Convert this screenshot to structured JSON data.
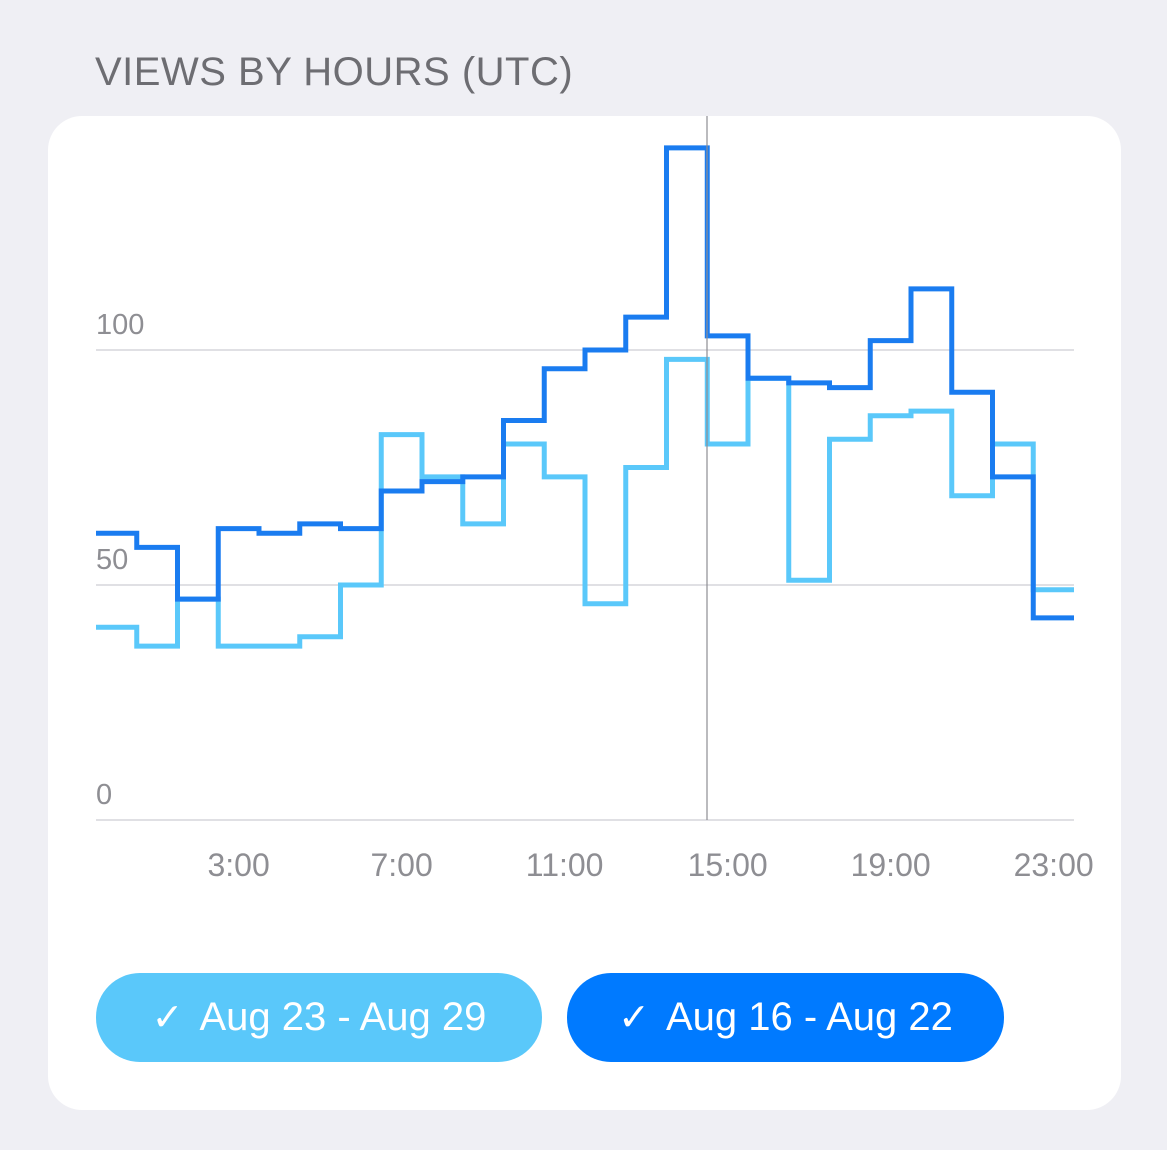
{
  "header": {
    "title": "VIEWS BY HOURS (UTC)"
  },
  "legend": [
    {
      "label": "Aug 23 - Aug 29",
      "check": "✓",
      "color": "#5ac8fa"
    },
    {
      "label": "Aug 16 - Aug 22",
      "check": "✓",
      "color": "#007aff"
    }
  ],
  "colors": {
    "background": "#efeff4",
    "card": "#ffffff",
    "grid": "#d6d6db",
    "axis_text": "#8e8e93",
    "cursor": "#8e8e93"
  },
  "chart_data": {
    "type": "line",
    "step": true,
    "title": "VIEWS BY HOURS (UTC)",
    "x": [
      0,
      1,
      2,
      3,
      4,
      5,
      6,
      7,
      8,
      9,
      10,
      11,
      12,
      13,
      14,
      15,
      16,
      17,
      18,
      19,
      20,
      21,
      22,
      23
    ],
    "xtick_values": [
      3,
      7,
      11,
      15,
      19,
      23
    ],
    "xtick_labels": [
      "3:00",
      "7:00",
      "11:00",
      "15:00",
      "19:00",
      "23:00"
    ],
    "ytick_values": [
      0,
      50,
      100
    ],
    "ytick_labels": [
      "0",
      "50",
      "100"
    ],
    "ylim": [
      0,
      140
    ],
    "grid": true,
    "cursor_hour": 15,
    "series": [
      {
        "name": "Aug 16 - Aug 22",
        "color": "#1a7cf0",
        "values": [
          61,
          58,
          47,
          62,
          61,
          63,
          62,
          70,
          72,
          73,
          85,
          96,
          100,
          107,
          143,
          103,
          94,
          93,
          92,
          102,
          113,
          91,
          73,
          43
        ]
      },
      {
        "name": "Aug 23 - Aug 29",
        "color": "#5ac8fa",
        "values": [
          41,
          37,
          47,
          37,
          37,
          39,
          50,
          82,
          73,
          63,
          80,
          73,
          46,
          75,
          98,
          80,
          94,
          51,
          81,
          86,
          87,
          69,
          80,
          49
        ]
      }
    ]
  }
}
